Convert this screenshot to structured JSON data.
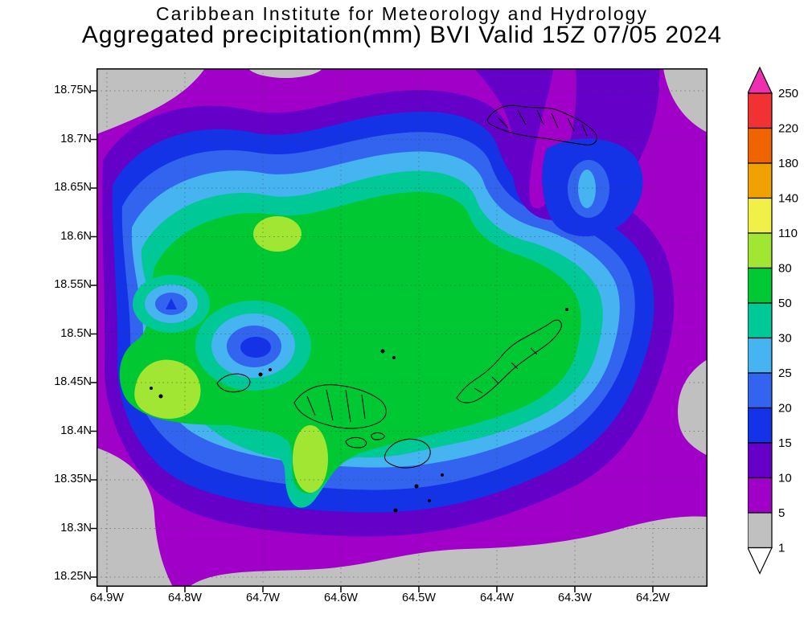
{
  "header": {
    "institute": "Caribbean Institute for Meteorology and Hydrology",
    "title": "Aggregated precipitation(mm) BVI Valid 15Z 07/05 2024"
  },
  "chart_data": {
    "type": "heatmap",
    "subtype": "filled-contour precipitation analysis map",
    "title": "Aggregated precipitation(mm) BVI Valid 15Z 07/05 2024",
    "source_line": "Caribbean Institute for Meteorology and Hydrology",
    "units": "mm",
    "region": "BVI",
    "valid_time": "15Z 07/05 2024",
    "x_ticks": [
      "64.9W",
      "64.8W",
      "64.7W",
      "64.6W",
      "64.5W",
      "64.4W",
      "64.3W",
      "64.2W"
    ],
    "y_ticks": [
      "18.75N",
      "18.7N",
      "18.65N",
      "18.6N",
      "18.55N",
      "18.5N",
      "18.45N",
      "18.4N",
      "18.35N",
      "18.3N",
      "18.25N"
    ],
    "grid": true,
    "legend_position": "right colorbar",
    "colorbar": {
      "levels": [
        1,
        5,
        10,
        15,
        20,
        25,
        30,
        50,
        80,
        110,
        140,
        180,
        220,
        250
      ],
      "band_colors_low_to_high": [
        "#c0c0c0",
        "#a000c8",
        "#6400c8",
        "#1432e6",
        "#3264f0",
        "#46b4f0",
        "#00c896",
        "#00c832",
        "#a0e632",
        "#f0f046",
        "#f0a000",
        "#f06400",
        "#f03232"
      ],
      "above_max_color": "#ee30b0",
      "below_min_color": "#ffffff"
    },
    "observed_features": {
      "dominant_band_mm": "30-80 over the central domain",
      "local_maxima_mm_80_110": [
        "18.45N 64.80W",
        "18.60N 64.70W",
        "18.34N 64.66W"
      ],
      "local_minima": [
        "Anegada area ~10-15 mm",
        "18.50N 64.74W ~15-25 mm",
        "domain edges 1-5 mm"
      ],
      "coastlines": "British Virgin Islands outlines drawn in black"
    }
  }
}
